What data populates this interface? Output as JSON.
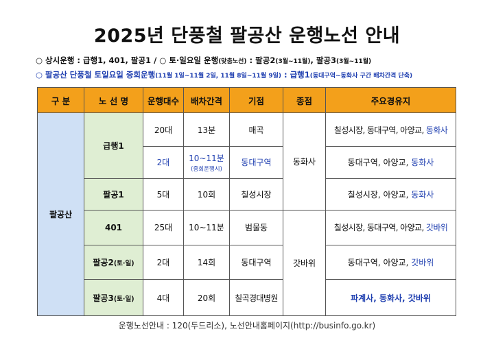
{
  "title": "2025년 단풍철 팔공산 운행노선 안내",
  "notice1": {
    "label": "상시운행 : 급행1, 401, 팔공1",
    "sep": "/ ○",
    "weekend_label": "토·일요일 운행",
    "weekend_note": "(맞춤노선)",
    "colon": " : ",
    "route_a": "팔공2",
    "route_a_period": "(3월~11월)",
    "comma": ", ",
    "route_b": "팔공3",
    "route_b_period": "(3월~11월)"
  },
  "notice2": {
    "main": "팔공산 단풍철 토일요일 증회운행",
    "dates": "(11월 1일~11월 2일, 11월 8일~11월 9일)",
    "colon": " : ",
    "route": "급행1",
    "detail": "(동대구역~동화사 구간 배차간격 단축)"
  },
  "table": {
    "headers": [
      "구 분",
      "노 선 명",
      "운행대수",
      "배차간격",
      "기점",
      "종점",
      "주요경유지"
    ],
    "region": "팔공산",
    "rows": {
      "express1_a": {
        "route": "급행1",
        "buses": "20대",
        "interval": "13분",
        "start": "매곡",
        "end": "동화사",
        "via_plain": "칠성시장, 동대구역, 아양교, ",
        "via_hl": "동화사"
      },
      "express1_b": {
        "buses": "2대",
        "interval": "10~11분",
        "interval_note": "(증회운행시)",
        "start": "동대구역",
        "via_plain": "동대구역, 아양교, ",
        "via_hl": "동화사"
      },
      "palgong1": {
        "route": "팔공1",
        "buses": "5대",
        "interval": "10회",
        "start": "칠성시장",
        "via_plain": "칠성시장, 아양교, ",
        "via_hl": "동화사"
      },
      "r401": {
        "route": "401",
        "buses": "25대",
        "interval": "10~11분",
        "start": "범물동",
        "end": "갓바위",
        "via_plain": "칠성시장, 동대구역, 아양교, ",
        "via_hl": "갓바위"
      },
      "palgong2": {
        "route": "팔공2",
        "route_note": "(토·일)",
        "buses": "2대",
        "interval": "14회",
        "start": "동대구역",
        "via_plain": "동대구역, 아양교, ",
        "via_hl": "갓바위"
      },
      "palgong3": {
        "route": "팔공3",
        "route_note": "(토·일)",
        "buses": "4대",
        "interval": "20회",
        "start": "칠곡경대병원",
        "via_hl": "파계사, 동화사, 갓바위"
      }
    }
  },
  "footer": "운행노선안내 : 120(두드리소), 노선안내홈페이지(http://businfo.go.kr)",
  "colors": {
    "header_orange": "#f3a01b",
    "region_blue": "#cfe0f5",
    "route_green": "#dfeed3",
    "highlight_blue": "#1f3fb0"
  }
}
